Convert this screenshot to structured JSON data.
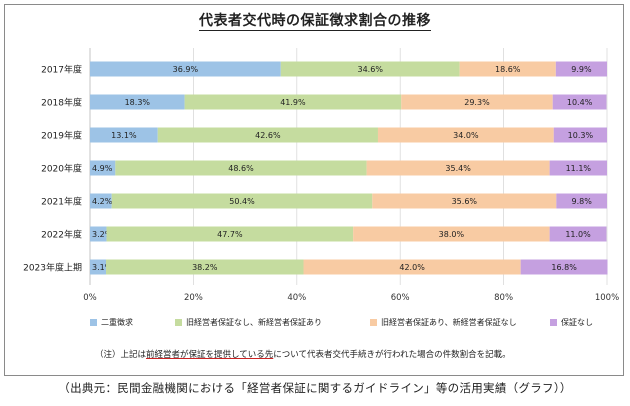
{
  "chart_data": {
    "type": "bar",
    "orientation": "horizontal",
    "stacked": true,
    "title": "代表者交代時の保証徴求割合の推移",
    "categories": [
      "2017年度",
      "2018年度",
      "2019年度",
      "2020年度",
      "2021年度",
      "2022年度",
      "2023年度上期"
    ],
    "series": [
      {
        "name": "二重徴求",
        "color": "#9dc3e6",
        "values": [
          36.9,
          18.3,
          13.1,
          4.9,
          4.2,
          3.2,
          3.1
        ],
        "labels": [
          "36.9%",
          "18.3%",
          "13.1%",
          "4.9%",
          "4.2%",
          "3.2%",
          "3.1%"
        ]
      },
      {
        "name": "旧経営者保証なし、新経営者保証あり",
        "color": "#c5dc9f",
        "values": [
          34.6,
          41.9,
          42.6,
          48.6,
          50.4,
          47.7,
          38.2
        ],
        "labels": [
          "34.6%",
          "41.9%",
          "42.6%",
          "48.6%",
          "50.4%",
          "47.7%",
          "38.2%"
        ]
      },
      {
        "name": "旧経営者保証あり、新経営者保証なし",
        "color": "#f8cba3",
        "values": [
          18.6,
          29.3,
          34.0,
          35.4,
          35.6,
          38.0,
          42.0
        ],
        "labels": [
          "18.6%",
          "29.3%",
          "34.0%",
          "35.4%",
          "35.6%",
          "38.0%",
          "42.0%"
        ]
      },
      {
        "name": "保証なし",
        "color": "#c5a0e0",
        "values": [
          9.9,
          10.4,
          10.3,
          11.1,
          9.8,
          11.0,
          16.8
        ],
        "labels": [
          "9.9%",
          "10.4%",
          "10.3%",
          "11.1%",
          "9.8%",
          "11.0%",
          "16.8%"
        ]
      }
    ],
    "xlim": [
      0,
      100
    ],
    "xticks": [
      "0%",
      "20%",
      "40%",
      "60%",
      "80%",
      "100%"
    ],
    "legend_position": "bottom"
  },
  "note": {
    "prefix": "（注）上記は",
    "underlined": "前経営者が保証を提供している先",
    "suffix": "について代表者交代手続きが行われた場合の件数割合を記載。"
  },
  "source": "（出典元：民間金融機関における「経営者保証に関するガイドライン」等の活用実績（グラフ））"
}
